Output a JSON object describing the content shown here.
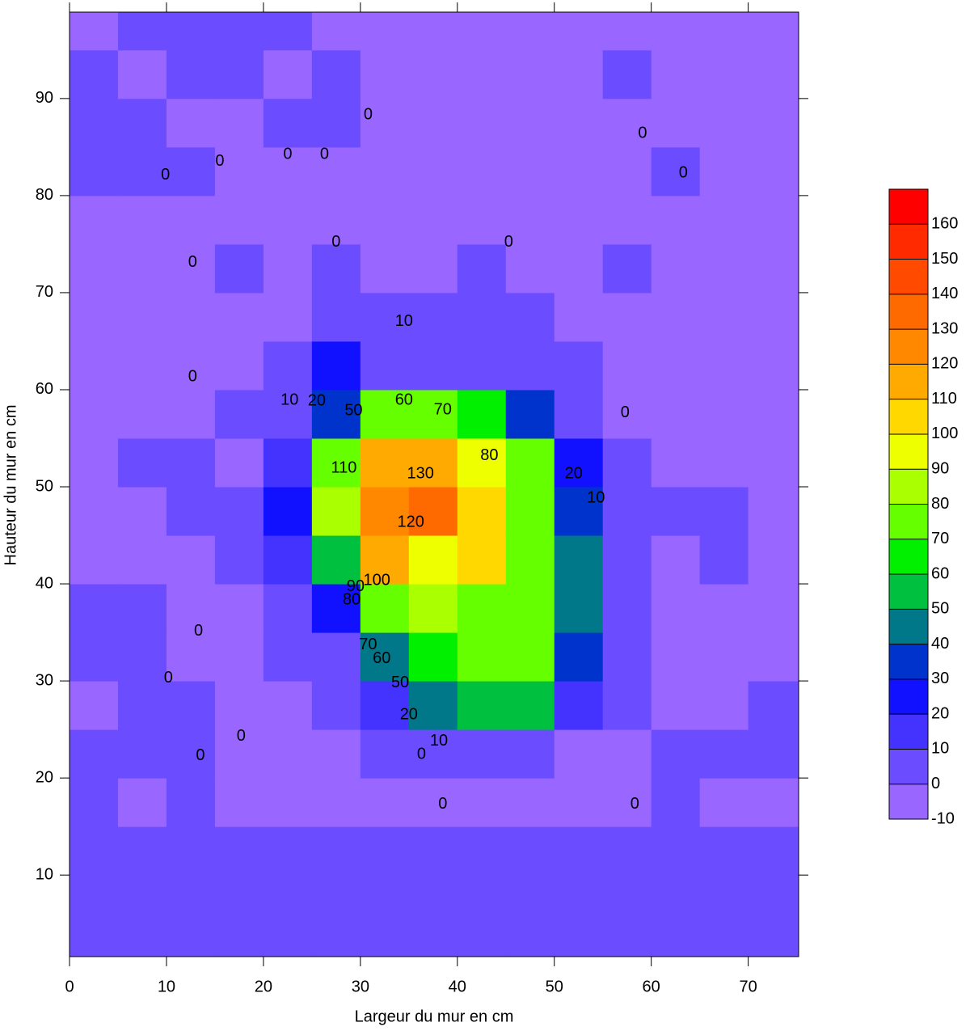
{
  "chart_data": {
    "type": "contour",
    "xlabel": "Largeur du mur en cm",
    "ylabel": "Hauteur du mur en cm",
    "xlim": [
      0,
      75.2
    ],
    "ylim": [
      1.6,
      98.9
    ],
    "xticks": [
      0,
      10,
      20,
      30,
      40,
      50,
      60,
      70
    ],
    "yticks": [
      10,
      20,
      30,
      40,
      50,
      60,
      70,
      80,
      90
    ],
    "x": [
      2.5,
      7.5,
      12.5,
      17.5,
      22.5,
      27.5,
      32.5,
      37.5,
      42.5,
      47.5,
      52.5,
      57.5,
      62.5,
      67.5,
      72.5
    ],
    "y": [
      2.5,
      7.5,
      12.5,
      17.5,
      22.5,
      27.5,
      32.5,
      37.5,
      42.5,
      47.5,
      52.5,
      57.5,
      62.5,
      67.5,
      72.5,
      77.5,
      82.5,
      87.5,
      92.5,
      97.5
    ],
    "z": [
      [
        5,
        5,
        5,
        5,
        5,
        5,
        5,
        5,
        5,
        5,
        5,
        5,
        5,
        5,
        5
      ],
      [
        5,
        5,
        5,
        5,
        5,
        5,
        5,
        5,
        5,
        5,
        5,
        5,
        5,
        5,
        5
      ],
      [
        5,
        5,
        5,
        5,
        5,
        5,
        5,
        5,
        5,
        5,
        5,
        5,
        5,
        5,
        5
      ],
      [
        5,
        -5,
        5,
        -5,
        -5,
        -5,
        -5,
        -5,
        -5,
        -5,
        -5,
        -5,
        5,
        -5,
        -5
      ],
      [
        5,
        5,
        5,
        -5,
        -5,
        -5,
        5,
        5,
        5,
        5,
        -5,
        -5,
        5,
        5,
        5
      ],
      [
        -5,
        5,
        5,
        -5,
        -5,
        5,
        15,
        45,
        55,
        50,
        15,
        5,
        -5,
        -5,
        5
      ],
      [
        5,
        5,
        -5,
        -5,
        5,
        5,
        45,
        65,
        75,
        75,
        35,
        5,
        -5,
        -5,
        -5
      ],
      [
        5,
        5,
        -5,
        -5,
        5,
        25,
        75,
        85,
        75,
        75,
        45,
        5,
        -5,
        -5,
        -5
      ],
      [
        -5,
        -5,
        -5,
        5,
        15,
        55,
        115,
        95,
        105,
        75,
        45,
        5,
        -5,
        5,
        -5
      ],
      [
        -5,
        -5,
        5,
        5,
        25,
        85,
        125,
        135,
        105,
        75,
        35,
        5,
        5,
        5,
        -5
      ],
      [
        -5,
        5,
        5,
        -5,
        15,
        75,
        115,
        115,
        95,
        75,
        25,
        5,
        -5,
        -5,
        -5
      ],
      [
        -5,
        -5,
        -5,
        5,
        5,
        35,
        75,
        75,
        65,
        35,
        5,
        -5,
        -5,
        -5,
        -5
      ],
      [
        -5,
        -5,
        -5,
        -5,
        5,
        25,
        5,
        5,
        5,
        5,
        5,
        -5,
        -5,
        -5,
        -5
      ],
      [
        -5,
        -5,
        -5,
        -5,
        -5,
        5,
        5,
        5,
        5,
        5,
        -5,
        -5,
        -5,
        -5,
        -5
      ],
      [
        -5,
        -5,
        -5,
        5,
        -5,
        5,
        -5,
        -5,
        5,
        -5,
        -5,
        5,
        -5,
        -5,
        -5
      ],
      [
        -5,
        -5,
        -5,
        -5,
        -5,
        -5,
        -5,
        -5,
        -5,
        -5,
        -5,
        -5,
        -5,
        -5,
        -5
      ],
      [
        5,
        5,
        5,
        -5,
        -5,
        -5,
        -5,
        -5,
        -5,
        -5,
        -5,
        -5,
        5,
        -5,
        -5
      ],
      [
        5,
        5,
        -5,
        -5,
        5,
        5,
        -5,
        -5,
        -5,
        -5,
        -5,
        -5,
        -5,
        -5,
        -5
      ],
      [
        5,
        -5,
        5,
        5,
        -5,
        5,
        -5,
        -5,
        -5,
        -5,
        -5,
        5,
        -5,
        -5,
        -5
      ],
      [
        -5,
        5,
        5,
        5,
        5,
        -5,
        -5,
        -5,
        -5,
        -5,
        -5,
        -5,
        -5,
        -5,
        -5
      ]
    ],
    "colorbar": {
      "lim": [
        -10,
        170
      ],
      "levels": [
        -10,
        0,
        10,
        20,
        30,
        40,
        50,
        60,
        70,
        80,
        90,
        100,
        110,
        120,
        130,
        140,
        150,
        160
      ],
      "colors": [
        "#9966ff",
        "#6b4cff",
        "#4433ff",
        "#1111ff",
        "#0033cc",
        "#00788a",
        "#00c040",
        "#00f000",
        "#66ff00",
        "#aaff00",
        "#eeff00",
        "#ffd800",
        "#ffaa00",
        "#ff8800",
        "#ff6a00",
        "#ff4a00",
        "#ff2a00",
        "#ff0000"
      ]
    },
    "contour_labels": [
      {
        "text": "0",
        "x": 30.8,
        "y": 88.3
      },
      {
        "text": "0",
        "x": 59.1,
        "y": 86.4
      },
      {
        "text": "0",
        "x": 9.9,
        "y": 82.1
      },
      {
        "text": "0",
        "x": 15.5,
        "y": 83.5
      },
      {
        "text": "0",
        "x": 22.5,
        "y": 84.2
      },
      {
        "text": "0",
        "x": 26.3,
        "y": 84.2
      },
      {
        "text": "0",
        "x": 63.3,
        "y": 82.3
      },
      {
        "text": "0",
        "x": 12.7,
        "y": 73.1
      },
      {
        "text": "0",
        "x": 27.5,
        "y": 75.2
      },
      {
        "text": "0",
        "x": 45.3,
        "y": 75.2
      },
      {
        "text": "10",
        "x": 34.5,
        "y": 67
      },
      {
        "text": "0",
        "x": 12.7,
        "y": 61.3
      },
      {
        "text": "10",
        "x": 22.7,
        "y": 58.9
      },
      {
        "text": "20",
        "x": 25.5,
        "y": 58.8
      },
      {
        "text": "50",
        "x": 29.3,
        "y": 57.8
      },
      {
        "text": "60",
        "x": 34.5,
        "y": 58.9
      },
      {
        "text": "70",
        "x": 38.5,
        "y": 57.9
      },
      {
        "text": "0",
        "x": 57.3,
        "y": 57.6
      },
      {
        "text": "80",
        "x": 43.3,
        "y": 53.2
      },
      {
        "text": "20",
        "x": 52,
        "y": 51.3
      },
      {
        "text": "10",
        "x": 54.3,
        "y": 48.8
      },
      {
        "text": "110",
        "x": 28.3,
        "y": 51.9
      },
      {
        "text": "130",
        "x": 36.2,
        "y": 51.3
      },
      {
        "text": "120",
        "x": 35.2,
        "y": 46.3
      },
      {
        "text": "100",
        "x": 31.7,
        "y": 40.3
      },
      {
        "text": "90",
        "x": 29.5,
        "y": 39.7
      },
      {
        "text": "80",
        "x": 29.1,
        "y": 38.3
      },
      {
        "text": "0",
        "x": 13.3,
        "y": 35.1
      },
      {
        "text": "70",
        "x": 30.8,
        "y": 33.7
      },
      {
        "text": "60",
        "x": 32.2,
        "y": 32.3
      },
      {
        "text": "50",
        "x": 34.1,
        "y": 29.8
      },
      {
        "text": "20",
        "x": 35,
        "y": 26.5
      },
      {
        "text": "10",
        "x": 38.1,
        "y": 23.8
      },
      {
        "text": "0",
        "x": 36.3,
        "y": 22.4
      },
      {
        "text": "0",
        "x": 10.2,
        "y": 30.3
      },
      {
        "text": "0",
        "x": 17.7,
        "y": 24.3
      },
      {
        "text": "0",
        "x": 13.5,
        "y": 22.3
      },
      {
        "text": "0",
        "x": 38.5,
        "y": 17.3
      },
      {
        "text": "0",
        "x": 58.3,
        "y": 17.3
      }
    ]
  }
}
